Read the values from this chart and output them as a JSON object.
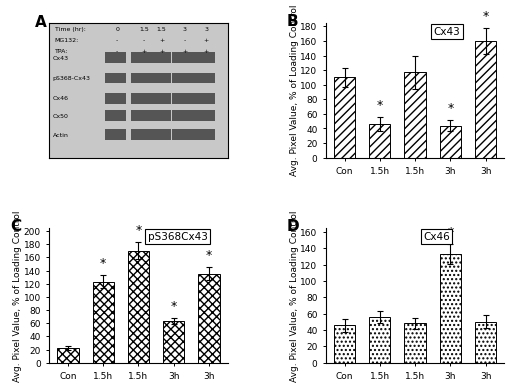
{
  "B": {
    "title": "Cx43",
    "categories": [
      "Con",
      "1.5h",
      "1.5h",
      "3h",
      "3h"
    ],
    "values": [
      110,
      46,
      117,
      44,
      160
    ],
    "errors": [
      13,
      10,
      23,
      8,
      18
    ],
    "starred": [
      false,
      true,
      false,
      true,
      true
    ],
    "ylim": [
      0,
      185
    ],
    "yticks": [
      0,
      20,
      40,
      60,
      80,
      100,
      120,
      140,
      160,
      180
    ],
    "hatch": "////"
  },
  "C": {
    "title": "pS368Cx43",
    "categories": [
      "Con",
      "1.5h",
      "1.5h",
      "3h",
      "3h"
    ],
    "values": [
      22,
      123,
      170,
      63,
      135
    ],
    "errors": [
      3,
      10,
      13,
      5,
      10
    ],
    "starred": [
      false,
      true,
      true,
      true,
      true
    ],
    "ylim": [
      0,
      205
    ],
    "yticks": [
      0,
      20,
      40,
      60,
      80,
      100,
      120,
      140,
      160,
      180,
      200
    ],
    "hatch": "xxxx"
  },
  "D": {
    "title": "Cx46",
    "categories": [
      "Con",
      "1.5h",
      "1.5h",
      "3h",
      "3h"
    ],
    "values": [
      46,
      56,
      48,
      133,
      50
    ],
    "errors": [
      8,
      7,
      7,
      12,
      8
    ],
    "starred": [
      false,
      false,
      false,
      true,
      false
    ],
    "ylim": [
      0,
      165
    ],
    "yticks": [
      0,
      20,
      40,
      60,
      80,
      100,
      120,
      140,
      160
    ],
    "hatch": "xxxx"
  },
  "ylabel": "Avg. Pixel Value, % of Loading Control",
  "bar_edge_color": "#000000",
  "fig_bg": "#ffffff",
  "label_fontsize": 6.5,
  "title_fontsize": 7.5,
  "tick_fontsize": 6.5,
  "panel_label_fontsize": 11,
  "star_fontsize": 9,
  "bar_width": 0.6
}
